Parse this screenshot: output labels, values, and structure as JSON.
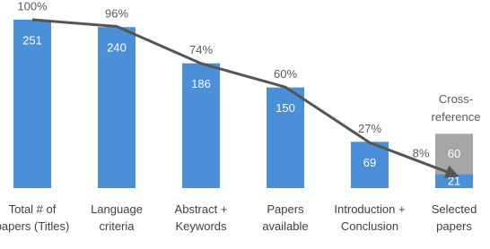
{
  "chart_data": {
    "type": "bar",
    "categories": [
      "Total # of papers (Titles)",
      "Language criteria",
      "Abstract + Keywords",
      "Papers available",
      "Introduction + Conclusion",
      "Selected papers"
    ],
    "series": [
      {
        "color": "#4a8fd8",
        "values": [
          251,
          240,
          186,
          150,
          69,
          21
        ]
      },
      {
        "name": "Cross-reference",
        "color": "#a6a6a6",
        "values": [
          null,
          null,
          null,
          null,
          null,
          60
        ]
      }
    ],
    "line": {
      "color": "#555555",
      "values": [
        100,
        96,
        74,
        60,
        27,
        8
      ],
      "value_labels": [
        "100%",
        "96%",
        "74%",
        "60%",
        "27%",
        "8%"
      ]
    },
    "ylim": [
      0,
      251
    ],
    "y2lim": [
      0,
      100
    ]
  }
}
